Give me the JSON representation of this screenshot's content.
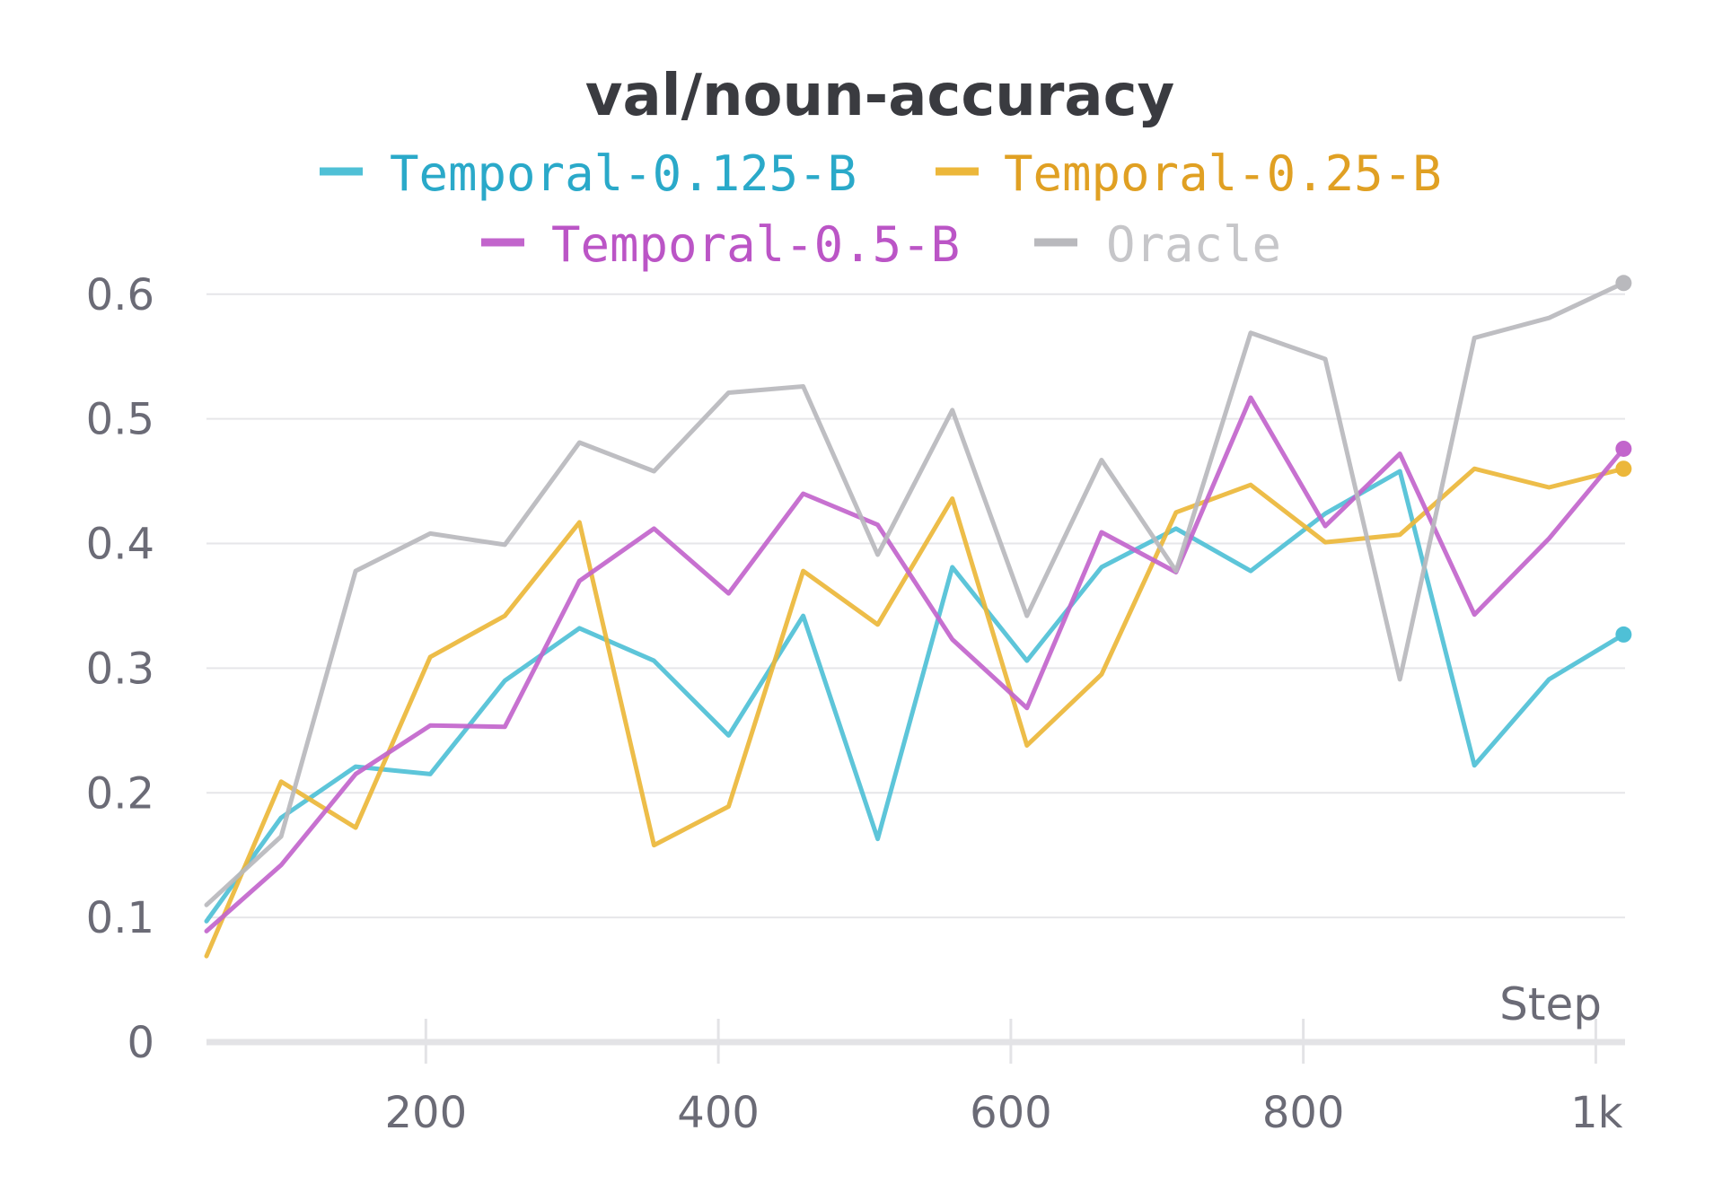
{
  "chart_data": {
    "type": "line",
    "title": "val/noun-accuracy",
    "xlabel": "Step",
    "ylabel": "",
    "xlim": [
      50,
      1020
    ],
    "ylim": [
      0,
      0.62
    ],
    "grid": true,
    "legend_position": "top",
    "x_ticks": [
      {
        "value": 200,
        "label": "200"
      },
      {
        "value": 400,
        "label": "400"
      },
      {
        "value": 600,
        "label": "600"
      },
      {
        "value": 800,
        "label": "800"
      },
      {
        "value": 1000,
        "label": "1k"
      }
    ],
    "y_ticks": [
      {
        "value": 0,
        "label": "0"
      },
      {
        "value": 0.1,
        "label": "0.1"
      },
      {
        "value": 0.2,
        "label": "0.2"
      },
      {
        "value": 0.3,
        "label": "0.3"
      },
      {
        "value": 0.4,
        "label": "0.4"
      },
      {
        "value": 0.5,
        "label": "0.5"
      },
      {
        "value": 0.6,
        "label": "0.6"
      }
    ],
    "x": [
      50,
      101,
      152,
      203,
      254,
      305,
      356,
      407,
      458,
      509,
      560,
      611,
      662,
      713,
      764,
      815,
      866,
      917,
      968,
      1019
    ],
    "series": [
      {
        "name": "Temporal-0.125-B",
        "color": "#4fc0d6",
        "label_color": "#2aa9c9",
        "values": [
          0.097,
          0.18,
          0.221,
          0.215,
          0.29,
          0.332,
          0.306,
          0.246,
          0.342,
          0.163,
          0.381,
          0.306,
          0.381,
          0.412,
          0.378,
          0.424,
          0.458,
          0.222,
          0.291,
          0.327
        ]
      },
      {
        "name": "Temporal-0.25-B",
        "color": "#ecb73a",
        "label_color": "#e0a023",
        "values": [
          0.069,
          0.209,
          0.172,
          0.309,
          0.342,
          0.417,
          0.158,
          0.189,
          0.378,
          0.335,
          0.436,
          0.238,
          0.295,
          0.425,
          0.447,
          0.401,
          0.407,
          0.46,
          0.445,
          0.46
        ]
      },
      {
        "name": "Temporal-0.5-B",
        "color": "#c265cc",
        "label_color": "#bb55c6",
        "values": [
          0.089,
          0.142,
          0.215,
          0.254,
          0.253,
          0.37,
          0.412,
          0.36,
          0.44,
          0.415,
          0.323,
          0.268,
          0.409,
          0.377,
          0.517,
          0.414,
          0.472,
          0.343,
          0.404,
          0.476
        ]
      },
      {
        "name": "Oracle",
        "color": "#b9b9bd",
        "label_color": "#c6c6c9",
        "values": [
          0.11,
          0.165,
          0.378,
          0.408,
          0.399,
          0.481,
          0.458,
          0.521,
          0.526,
          0.391,
          0.507,
          0.342,
          0.467,
          0.378,
          0.569,
          0.548,
          0.291,
          0.565,
          0.581,
          0.609
        ]
      }
    ]
  }
}
